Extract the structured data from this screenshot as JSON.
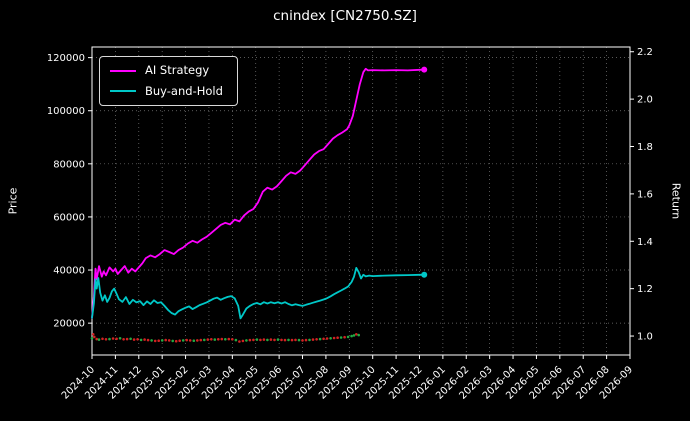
{
  "chart_data": {
    "type": "line",
    "title": "cnindex [CN2750.SZ]",
    "ylabel_left": "Price",
    "ylabel_right": "Return",
    "background": "#000000",
    "text_color": "#ffffff",
    "grid": {
      "show": true,
      "style": "dotted",
      "color": "#787878"
    },
    "legend": {
      "position": "upper left",
      "entries": [
        "AI Strategy",
        "Buy-and-Hold"
      ]
    },
    "x_axis": {
      "range_months": [
        0,
        23
      ],
      "label_rotation": 45,
      "tick_labels": [
        "2024-10",
        "2024-11",
        "2024-12",
        "2025-01",
        "2025-02",
        "2025-03",
        "2025-04",
        "2025-05",
        "2025-06",
        "2025-07",
        "2025-08",
        "2025-09",
        "2025-10",
        "2025-11",
        "2025-12",
        "2026-01",
        "2026-02",
        "2026-03",
        "2026-04",
        "2026-05",
        "2026-06",
        "2026-07",
        "2026-08",
        "2026-09"
      ]
    },
    "price_axis": {
      "ticks": [
        20000,
        40000,
        60000,
        80000,
        100000,
        120000
      ],
      "labels": [
        "20000",
        "40000",
        "60000",
        "80000",
        "100000",
        "120000"
      ],
      "range": [
        8000,
        124000
      ]
    },
    "return_axis": {
      "ticks": [
        1.0,
        1.2,
        1.4,
        1.6,
        1.8,
        2.0,
        2.2
      ],
      "labels": [
        "1.0",
        "1.2",
        "1.4",
        "1.6",
        "1.8",
        "2.0",
        "2.2"
      ],
      "range": [
        0.92,
        2.22
      ]
    },
    "series": [
      {
        "name": "AI Strategy",
        "color": "#ff00ff",
        "points": [
          [
            0,
            22000
          ],
          [
            0.08,
            30000
          ],
          [
            0.15,
            40500
          ],
          [
            0.2,
            36500
          ],
          [
            0.3,
            41500
          ],
          [
            0.42,
            37500
          ],
          [
            0.5,
            39500
          ],
          [
            0.6,
            38000
          ],
          [
            0.75,
            41000
          ],
          [
            0.9,
            39500
          ],
          [
            1.0,
            40500
          ],
          [
            1.1,
            38500
          ],
          [
            1.25,
            40000
          ],
          [
            1.4,
            41500
          ],
          [
            1.55,
            39000
          ],
          [
            1.7,
            40500
          ],
          [
            1.85,
            39500
          ],
          [
            2.0,
            41000
          ],
          [
            2.15,
            42500
          ],
          [
            2.3,
            44500
          ],
          [
            2.5,
            45500
          ],
          [
            2.7,
            44800
          ],
          [
            2.9,
            46000
          ],
          [
            3.1,
            47500
          ],
          [
            3.3,
            46800
          ],
          [
            3.5,
            46000
          ],
          [
            3.7,
            47500
          ],
          [
            3.9,
            48500
          ],
          [
            4.1,
            50000
          ],
          [
            4.3,
            51000
          ],
          [
            4.5,
            50300
          ],
          [
            4.7,
            51500
          ],
          [
            4.9,
            52500
          ],
          [
            5.1,
            54000
          ],
          [
            5.3,
            55500
          ],
          [
            5.5,
            57000
          ],
          [
            5.7,
            57800
          ],
          [
            5.9,
            57200
          ],
          [
            6.1,
            59000
          ],
          [
            6.3,
            58300
          ],
          [
            6.5,
            60500
          ],
          [
            6.7,
            62000
          ],
          [
            6.9,
            63000
          ],
          [
            7.1,
            65500
          ],
          [
            7.3,
            69500
          ],
          [
            7.5,
            71000
          ],
          [
            7.7,
            70300
          ],
          [
            7.9,
            71500
          ],
          [
            8.1,
            73500
          ],
          [
            8.3,
            75500
          ],
          [
            8.5,
            76800
          ],
          [
            8.7,
            76200
          ],
          [
            8.9,
            77500
          ],
          [
            9.1,
            79500
          ],
          [
            9.3,
            81500
          ],
          [
            9.5,
            83500
          ],
          [
            9.7,
            84800
          ],
          [
            9.9,
            85500
          ],
          [
            10.1,
            87500
          ],
          [
            10.3,
            89500
          ],
          [
            10.5,
            90800
          ],
          [
            10.7,
            91800
          ],
          [
            10.9,
            93000
          ],
          [
            11.0,
            94500
          ],
          [
            11.15,
            98000
          ],
          [
            11.3,
            104000
          ],
          [
            11.45,
            110000
          ],
          [
            11.6,
            114500
          ],
          [
            11.7,
            115800
          ],
          [
            11.8,
            115200
          ],
          [
            12.0,
            115300
          ],
          [
            12.5,
            115200
          ],
          [
            13.0,
            115300
          ],
          [
            13.5,
            115200
          ],
          [
            14.0,
            115400
          ],
          [
            14.2,
            115500
          ]
        ]
      },
      {
        "name": "Buy-and-Hold",
        "color": "#00c8c8",
        "points": [
          [
            0,
            22000
          ],
          [
            0.08,
            27500
          ],
          [
            0.15,
            36500
          ],
          [
            0.2,
            33000
          ],
          [
            0.27,
            37000
          ],
          [
            0.35,
            31500
          ],
          [
            0.45,
            28500
          ],
          [
            0.55,
            30500
          ],
          [
            0.65,
            28000
          ],
          [
            0.75,
            29500
          ],
          [
            0.85,
            32000
          ],
          [
            0.95,
            33000
          ],
          [
            1.05,
            31000
          ],
          [
            1.15,
            29000
          ],
          [
            1.3,
            28000
          ],
          [
            1.45,
            29800
          ],
          [
            1.6,
            27200
          ],
          [
            1.75,
            28800
          ],
          [
            1.9,
            27800
          ],
          [
            2.05,
            28300
          ],
          [
            2.2,
            26800
          ],
          [
            2.35,
            28200
          ],
          [
            2.5,
            27200
          ],
          [
            2.65,
            28600
          ],
          [
            2.8,
            27600
          ],
          [
            2.95,
            27900
          ],
          [
            3.1,
            26500
          ],
          [
            3.25,
            25000
          ],
          [
            3.4,
            23800
          ],
          [
            3.55,
            23200
          ],
          [
            3.7,
            24500
          ],
          [
            3.85,
            25200
          ],
          [
            4.0,
            25800
          ],
          [
            4.15,
            26300
          ],
          [
            4.3,
            25300
          ],
          [
            4.45,
            26000
          ],
          [
            4.6,
            26800
          ],
          [
            4.75,
            27300
          ],
          [
            4.9,
            27800
          ],
          [
            5.05,
            28500
          ],
          [
            5.2,
            29200
          ],
          [
            5.35,
            29600
          ],
          [
            5.5,
            28800
          ],
          [
            5.65,
            29400
          ],
          [
            5.8,
            29900
          ],
          [
            5.95,
            30200
          ],
          [
            6.1,
            29300
          ],
          [
            6.25,
            26500
          ],
          [
            6.35,
            21800
          ],
          [
            6.45,
            23200
          ],
          [
            6.6,
            25500
          ],
          [
            6.75,
            26500
          ],
          [
            6.9,
            27200
          ],
          [
            7.05,
            27600
          ],
          [
            7.2,
            27100
          ],
          [
            7.35,
            27900
          ],
          [
            7.5,
            27400
          ],
          [
            7.65,
            27900
          ],
          [
            7.8,
            27500
          ],
          [
            7.95,
            27900
          ],
          [
            8.1,
            27400
          ],
          [
            8.25,
            27900
          ],
          [
            8.4,
            27200
          ],
          [
            8.55,
            26700
          ],
          [
            8.7,
            27100
          ],
          [
            8.85,
            26800
          ],
          [
            9.0,
            26500
          ],
          [
            9.15,
            26900
          ],
          [
            9.3,
            27300
          ],
          [
            9.45,
            27700
          ],
          [
            9.6,
            28100
          ],
          [
            9.75,
            28500
          ],
          [
            9.9,
            28900
          ],
          [
            10.05,
            29400
          ],
          [
            10.2,
            30100
          ],
          [
            10.35,
            30900
          ],
          [
            10.5,
            31600
          ],
          [
            10.65,
            32300
          ],
          [
            10.8,
            33000
          ],
          [
            10.95,
            33800
          ],
          [
            11.1,
            35500
          ],
          [
            11.2,
            37500
          ],
          [
            11.3,
            40800
          ],
          [
            11.4,
            39200
          ],
          [
            11.5,
            36800
          ],
          [
            11.6,
            38200
          ],
          [
            11.7,
            37600
          ],
          [
            11.85,
            37900
          ],
          [
            12.0,
            37700
          ],
          [
            12.5,
            37900
          ],
          [
            13.0,
            38000
          ],
          [
            13.5,
            38100
          ],
          [
            14.0,
            38200
          ],
          [
            14.2,
            38200
          ]
        ]
      }
    ],
    "index_scatter": {
      "name": "index-price",
      "point_colors": {
        "r": "#d22222",
        "g": "#22aa44"
      },
      "points": [
        [
          0.0,
          14300,
          "g"
        ],
        [
          0.05,
          15800,
          "r"
        ],
        [
          0.1,
          14800,
          "r"
        ],
        [
          0.2,
          14000,
          "r"
        ],
        [
          0.3,
          13800,
          "g"
        ],
        [
          0.45,
          14100,
          "r"
        ],
        [
          0.6,
          13900,
          "r"
        ],
        [
          0.75,
          14000,
          "g"
        ],
        [
          0.9,
          14200,
          "r"
        ],
        [
          1.05,
          14100,
          "r"
        ],
        [
          1.2,
          14300,
          "g"
        ],
        [
          1.35,
          13900,
          "r"
        ],
        [
          1.5,
          14000,
          "r"
        ],
        [
          1.65,
          14100,
          "g"
        ],
        [
          1.8,
          13800,
          "r"
        ],
        [
          1.95,
          13900,
          "r"
        ],
        [
          2.1,
          13700,
          "g"
        ],
        [
          2.25,
          13800,
          "r"
        ],
        [
          2.4,
          13600,
          "r"
        ],
        [
          2.55,
          13500,
          "g"
        ],
        [
          2.7,
          13300,
          "r"
        ],
        [
          2.85,
          13400,
          "r"
        ],
        [
          3.0,
          13500,
          "g"
        ],
        [
          3.15,
          13600,
          "r"
        ],
        [
          3.3,
          13500,
          "r"
        ],
        [
          3.45,
          13300,
          "g"
        ],
        [
          3.6,
          13200,
          "r"
        ],
        [
          3.75,
          13400,
          "r"
        ],
        [
          3.9,
          13500,
          "g"
        ],
        [
          4.05,
          13600,
          "r"
        ],
        [
          4.2,
          13500,
          "r"
        ],
        [
          4.35,
          13400,
          "g"
        ],
        [
          4.5,
          13500,
          "r"
        ],
        [
          4.65,
          13600,
          "r"
        ],
        [
          4.8,
          13700,
          "g"
        ],
        [
          4.95,
          13800,
          "r"
        ],
        [
          5.1,
          13900,
          "r"
        ],
        [
          5.25,
          13800,
          "g"
        ],
        [
          5.4,
          13900,
          "r"
        ],
        [
          5.55,
          14000,
          "r"
        ],
        [
          5.7,
          13900,
          "g"
        ],
        [
          5.85,
          14000,
          "r"
        ],
        [
          6.0,
          13900,
          "r"
        ],
        [
          6.15,
          13600,
          "g"
        ],
        [
          6.3,
          13100,
          "r"
        ],
        [
          6.45,
          13300,
          "r"
        ],
        [
          6.6,
          13500,
          "g"
        ],
        [
          6.75,
          13600,
          "r"
        ],
        [
          6.9,
          13700,
          "r"
        ],
        [
          7.05,
          13800,
          "g"
        ],
        [
          7.2,
          13700,
          "r"
        ],
        [
          7.35,
          13800,
          "r"
        ],
        [
          7.5,
          13700,
          "g"
        ],
        [
          7.65,
          13800,
          "r"
        ],
        [
          7.8,
          13700,
          "r"
        ],
        [
          7.95,
          13800,
          "g"
        ],
        [
          8.1,
          13700,
          "r"
        ],
        [
          8.25,
          13600,
          "r"
        ],
        [
          8.4,
          13700,
          "g"
        ],
        [
          8.55,
          13600,
          "r"
        ],
        [
          8.7,
          13700,
          "r"
        ],
        [
          8.85,
          13600,
          "g"
        ],
        [
          9.0,
          13500,
          "r"
        ],
        [
          9.15,
          13600,
          "r"
        ],
        [
          9.3,
          13700,
          "g"
        ],
        [
          9.45,
          13800,
          "r"
        ],
        [
          9.6,
          13900,
          "r"
        ],
        [
          9.75,
          14000,
          "g"
        ],
        [
          9.9,
          14100,
          "r"
        ],
        [
          10.05,
          14200,
          "r"
        ],
        [
          10.2,
          14300,
          "g"
        ],
        [
          10.35,
          14400,
          "r"
        ],
        [
          10.5,
          14500,
          "r"
        ],
        [
          10.65,
          14600,
          "g"
        ],
        [
          10.8,
          14700,
          "r"
        ],
        [
          10.95,
          14800,
          "g"
        ],
        [
          11.1,
          15100,
          "g"
        ],
        [
          11.2,
          15400,
          "g"
        ],
        [
          11.3,
          15800,
          "r"
        ],
        [
          11.4,
          15500,
          "g"
        ]
      ]
    }
  }
}
